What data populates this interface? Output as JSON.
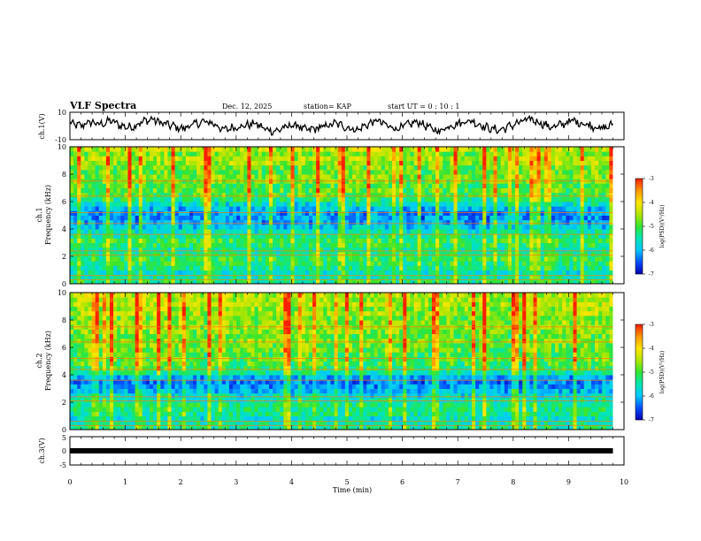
{
  "header": {
    "title": "VLF Spectra",
    "date": "Dec. 12, 2025",
    "station": "station= KAP",
    "start_time": "start  UT =  0 : 10 : 1"
  },
  "colors": {
    "spectrogram_colormap": [
      "#0000b4",
      "#0050ff",
      "#00c8ff",
      "#00e6b4",
      "#32e632",
      "#b4e600",
      "#ffe600",
      "#ff9600",
      "#ff1e00"
    ],
    "trace": "#000000"
  },
  "chart_data": [
    {
      "type": "line",
      "name": "ch1",
      "ylabel": "ch.1(V)",
      "ylim": [
        -10,
        10
      ],
      "y_ticks": [
        "10",
        "-10"
      ],
      "xlim": [
        0,
        10
      ],
      "x_end_of_data": 9.8,
      "description_values": "continuous waveform oscillating approx between -4 and +6 V",
      "y": [
        2,
        0,
        3,
        1,
        4,
        0,
        -1,
        3,
        5,
        2,
        0,
        -2,
        1,
        3,
        2,
        -3,
        -1,
        0,
        2,
        -2,
        -4,
        -1,
        1,
        -3,
        -2,
        0,
        2,
        -1,
        -3,
        1,
        4,
        0,
        -2,
        1,
        3,
        -1,
        -4,
        0,
        2,
        4,
        1,
        -2,
        -3,
        0,
        3,
        5,
        2,
        -1,
        1,
        4,
        2,
        0,
        -2,
        1
      ]
    },
    {
      "type": "heatmap",
      "name": "ch1-spectrogram",
      "ylabel": "ch.1\nFrequency (kHz)",
      "ylabel_line1": "ch.1",
      "ylabel_line2": "Frequency (kHz)",
      "ylim": [
        0,
        10
      ],
      "y_ticks": [
        "0",
        "2",
        "4",
        "6",
        "8",
        "10"
      ],
      "xlim": [
        0,
        10
      ],
      "x_end_of_data": 9.8,
      "freq_band_levels": [
        -5.3,
        -5.5,
        -5.6,
        -5.4,
        -5.2,
        -5.1,
        -5.3,
        -5.4,
        -5.2,
        -5.1,
        -5.4,
        -5.6,
        -5.9,
        -6.1,
        -6.2,
        -6.2,
        -6.0,
        -5.7,
        -5.3,
        -5.0,
        -4.9,
        -5.0,
        -4.8,
        -4.7,
        -4.9,
        -4.8,
        -4.6,
        -4.5,
        -4.7,
        -4.4
      ],
      "colorbar": {
        "label": "log(PSD)(V²/Hz)",
        "vmin": -7,
        "vmax": -3,
        "ticks": [
          "-3",
          "-4",
          "-5",
          "-6",
          "-7"
        ]
      }
    },
    {
      "type": "heatmap",
      "name": "ch2-spectrogram",
      "ylabel_line1": "ch.2",
      "ylabel_line2": "Frequency (kHz)",
      "ylim": [
        0,
        10
      ],
      "y_ticks": [
        "0",
        "2",
        "4",
        "6",
        "8",
        "10"
      ],
      "xlim": [
        0,
        10
      ],
      "x_end_of_data": 9.8,
      "freq_band_levels": [
        -5.4,
        -5.5,
        -5.6,
        -5.4,
        -5.3,
        -5.3,
        -5.5,
        -5.7,
        -6.0,
        -6.2,
        -6.3,
        -6.1,
        -5.5,
        -5.2,
        -5.0,
        -4.9,
        -5.0,
        -4.8,
        -4.8,
        -4.7,
        -4.9,
        -4.7,
        -4.6,
        -4.6,
        -4.8,
        -4.5,
        -4.6,
        -4.4,
        -4.5,
        -4.4
      ],
      "colorbar": {
        "label": "log(PSD)(V²/Hz)",
        "vmin": -7,
        "vmax": -3,
        "ticks": [
          "-3",
          "-4",
          "-5",
          "-6",
          "-7"
        ]
      }
    },
    {
      "type": "line",
      "name": "ch3",
      "ylabel": "ch.3(V)",
      "ylim": [
        -5,
        5
      ],
      "y_ticks": [
        "5",
        "0",
        "-5"
      ],
      "xlim": [
        0,
        10
      ],
      "x_end_of_data": 9.8,
      "level": 0,
      "description_values": "flat thick band centered near 0 V"
    }
  ],
  "x_axis": {
    "label": "Time  (min)",
    "ticks": [
      "0",
      "1",
      "2",
      "3",
      "4",
      "5",
      "6",
      "7",
      "8",
      "9",
      "10"
    ]
  }
}
